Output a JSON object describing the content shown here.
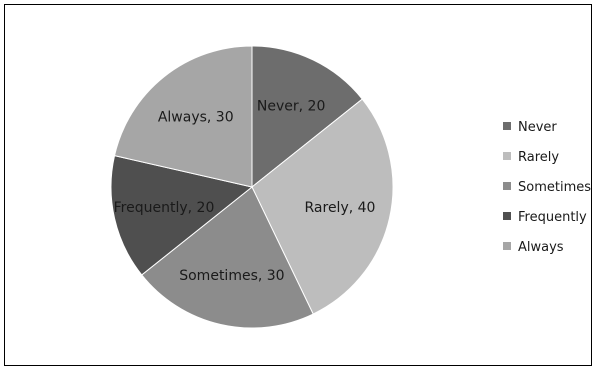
{
  "chart_data": {
    "type": "pie",
    "categories": [
      "Never",
      "Rarely",
      "Sometimes",
      "Frequently",
      "Always"
    ],
    "values": [
      20,
      40,
      30,
      20,
      30
    ],
    "labels": [
      "Never, 20",
      "Rarely, 40",
      "Sometimes, 30",
      "Frequently, 20",
      "Always, 30"
    ],
    "colors": [
      "#6d6d6d",
      "#bdbdbd",
      "#8c8c8c",
      "#4f4f4f",
      "#a6a6a6"
    ],
    "legend_position": "right",
    "start_angle_deg": 0,
    "direction": "clockwise"
  }
}
